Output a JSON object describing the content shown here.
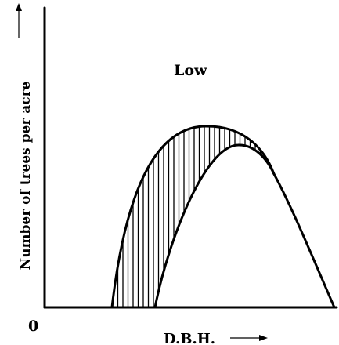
{
  "diagram": {
    "y_axis_label": "Number of trees per acre",
    "x_axis_label": "D.B.H.",
    "origin_label": "0",
    "curve_label": "Low",
    "icons": {
      "x_arrow": "right-arrow-icon",
      "y_arrow": "up-arrow-icon"
    },
    "colors": {
      "ink": "#000000",
      "background": "#ffffff"
    }
  }
}
